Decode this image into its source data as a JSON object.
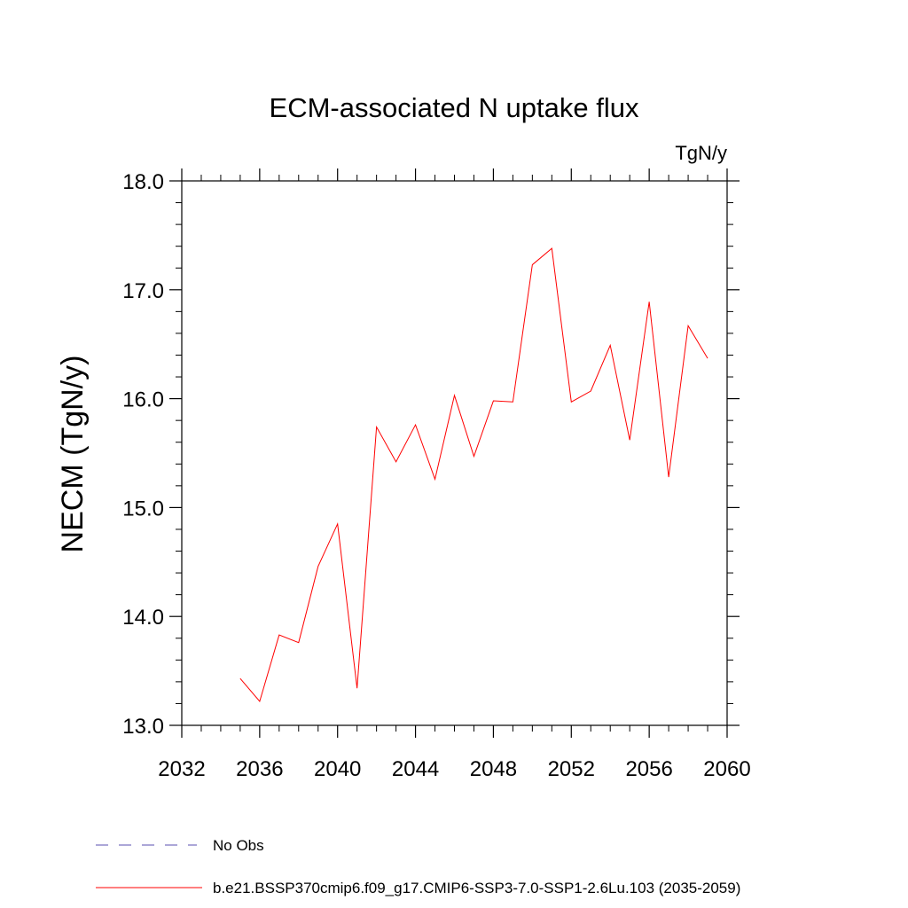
{
  "chart_data": {
    "type": "line",
    "title": "ECM-associated N uptake flux",
    "units": "TgN/y",
    "xlabel": "",
    "ylabel": "NECM  (TgN/y)",
    "xlim": [
      2032,
      2060
    ],
    "ylim": [
      13.0,
      18.0
    ],
    "x_ticks": [
      2032,
      2036,
      2040,
      2044,
      2048,
      2052,
      2056,
      2060
    ],
    "x_tick_labels": [
      "2032",
      "2036",
      "2040",
      "2044",
      "2048",
      "2052",
      "2056",
      "2060"
    ],
    "y_ticks": [
      13.0,
      14.0,
      15.0,
      16.0,
      17.0,
      18.0
    ],
    "y_tick_labels": [
      "13.0",
      "14.0",
      "15.0",
      "16.0",
      "17.0",
      "18.0"
    ],
    "grid": false,
    "series": [
      {
        "name": "b.e21.BSSP370cmip6.f09_g17.CMIP6-SSP3-7.0-SSP1-2.6Lu.103 (2035-2059)",
        "color": "#ff0000",
        "x": [
          2035,
          2036,
          2037,
          2038,
          2039,
          2040,
          2041,
          2042,
          2043,
          2044,
          2045,
          2046,
          2047,
          2048,
          2049,
          2050,
          2051,
          2052,
          2053,
          2054,
          2055,
          2056,
          2057,
          2058,
          2059
        ],
        "values": [
          13.43,
          13.22,
          13.83,
          13.76,
          14.46,
          14.85,
          13.34,
          15.74,
          15.42,
          15.76,
          15.26,
          16.03,
          15.47,
          15.98,
          15.97,
          17.23,
          17.38,
          15.97,
          16.07,
          16.49,
          15.62,
          16.89,
          15.28,
          16.67,
          16.37
        ]
      }
    ],
    "legend": {
      "placement": "bottom-left",
      "entries": [
        {
          "label": "No Obs",
          "color": "#5a4fb0",
          "style": "dashed"
        },
        {
          "label": "b.e21.BSSP370cmip6.f09_g17.CMIP6-SSP3-7.0-SSP1-2.6Lu.103 (2035-2059)",
          "color": "#ff0000",
          "style": "solid"
        }
      ]
    }
  }
}
